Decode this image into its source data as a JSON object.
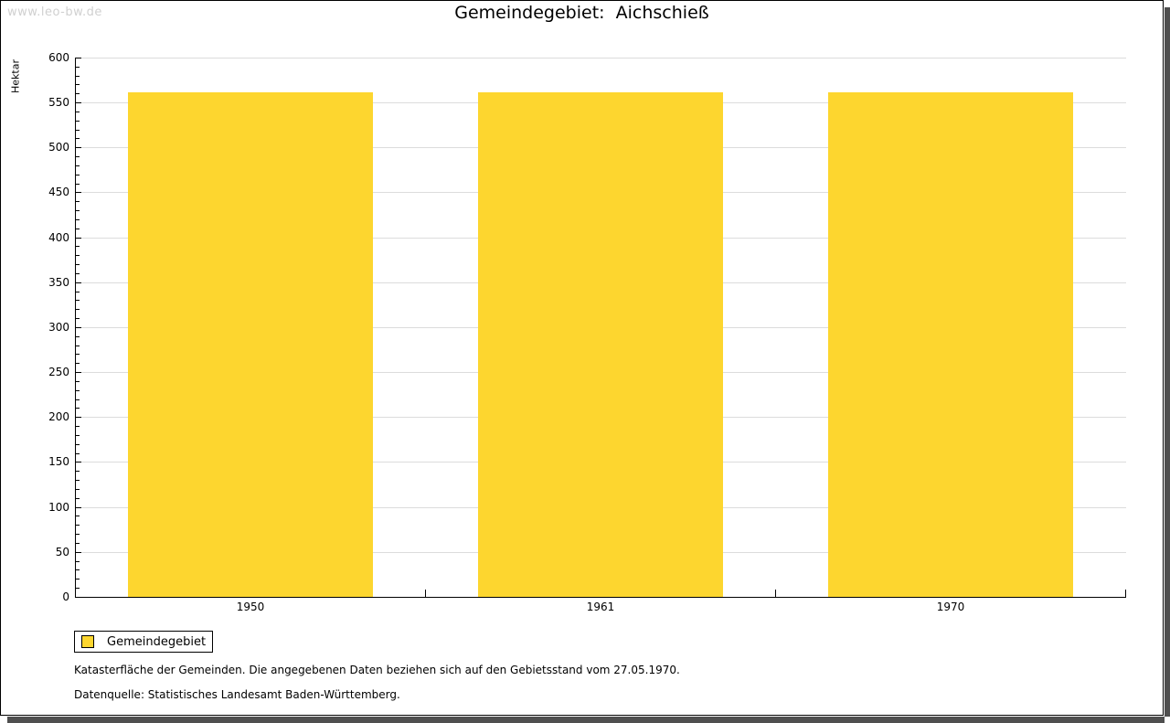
{
  "watermark": "www.leo-bw.de",
  "title": "Gemeindegebiet:  Aichschieß",
  "chart_data": {
    "type": "bar",
    "title": "Gemeindegebiet: Aichschieß",
    "categories": [
      "1950",
      "1961",
      "1970"
    ],
    "series": [
      {
        "name": "Gemeindegebiet",
        "values": [
          561,
          561,
          561
        ]
      }
    ],
    "xlabel": "",
    "ylabel": "Hektar",
    "ylim": [
      0,
      600
    ],
    "ytick_step": 50,
    "yminor_step": 10,
    "grid": true,
    "legend_position": "bottom-left"
  },
  "legend": {
    "label": "Gemeindegebiet"
  },
  "footnotes": [
    "Katasterfläche der Gemeinden. Die angegebenen Daten beziehen sich auf den Gebietsstand vom 27.05.1970.",
    "Datenquelle: Statistisches Landesamt Baden-Württemberg."
  ],
  "colors": {
    "bar": "#FDD62F",
    "grid": "#DCDCDC",
    "axis": "#000000",
    "watermark": "#D0D0D0",
    "shadow": "#4F4F4F"
  }
}
